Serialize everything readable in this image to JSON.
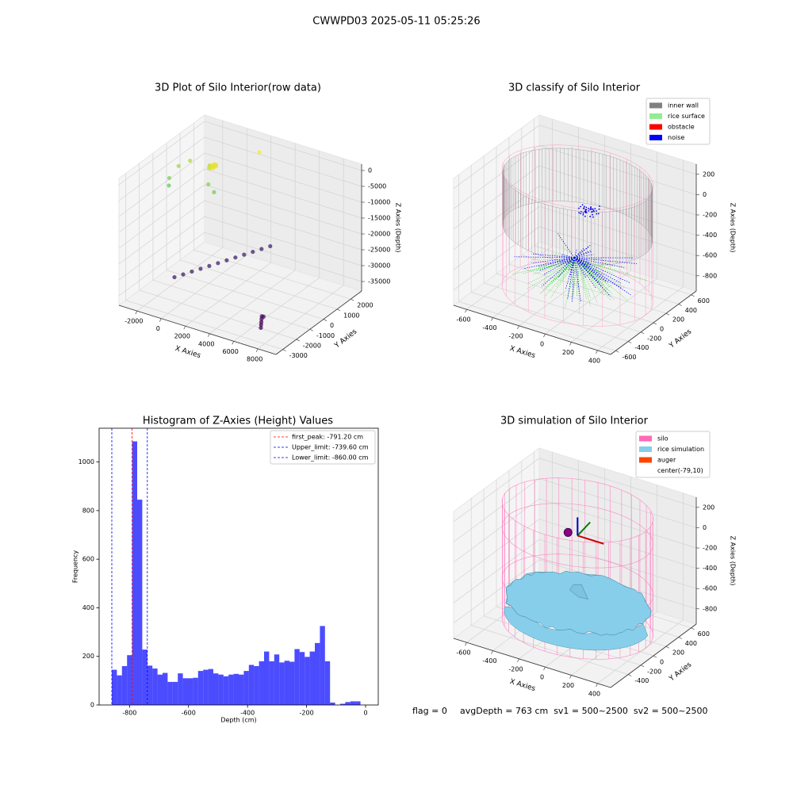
{
  "title": "CWWPD03 2025-05-11 05:25:26",
  "footer": [
    "flag = 0",
    "avgDepth = 763 cm  sv1 = 500~2500  sv2 = 500~2500"
  ],
  "chart_data": [
    {
      "type": "scatter3d",
      "title": "3D Plot of Silo Interior(row data)",
      "xlabel": "X Axies",
      "ylabel": "Y Axies",
      "zlabel": "Z Axies (Depth)",
      "xlim": [
        -3500,
        9500
      ],
      "ylim": [
        -3500,
        2800
      ],
      "zlim": [
        -38000,
        2000
      ],
      "xticks": [
        -2000,
        0,
        2000,
        4000,
        6000,
        8000
      ],
      "yticks": [
        -3000,
        -2000,
        -1000,
        0,
        1000,
        2000
      ],
      "zticks": [
        -35000,
        -30000,
        -25000,
        -20000,
        -15000,
        -10000,
        -5000,
        0
      ],
      "colormap": "viridis",
      "x": [
        6300,
        6450,
        6600,
        6750,
        6900,
        6500,
        -1330,
        -1020,
        -710,
        -400,
        -90,
        220,
        530,
        840,
        1150,
        1460,
        1770,
        2080,
        -2500,
        -2000,
        -2600,
        -2400,
        -600,
        300,
        2500,
        1000,
        -200,
        400,
        550,
        650,
        500,
        450,
        600,
        700,
        350
      ],
      "y": [
        -1700,
        -1850,
        -2000,
        -2150,
        -2300,
        -1750,
        -1345,
        -980,
        -615,
        -250,
        115,
        480,
        845,
        1210,
        1575,
        1940,
        2305,
        2670,
        0,
        400,
        -600,
        -800,
        600,
        -300,
        1500,
        -500,
        200,
        -200,
        -150,
        -250,
        -50,
        -300,
        0,
        -100,
        -100
      ],
      "z": [
        -35500,
        -35700,
        -36000,
        -36200,
        -36500,
        -35200,
        -33400,
        -33300,
        -33200,
        -33100,
        -33000,
        -32900,
        -32800,
        -32700,
        -32600,
        -32500,
        -32400,
        -32300,
        -4000,
        -3000,
        -6000,
        -7500,
        -3500,
        -5500,
        1500,
        -6500,
        -2500,
        0,
        200,
        -100,
        300,
        -300,
        100,
        0,
        -200
      ]
    },
    {
      "type": "scene3d",
      "title": "3D classify of Silo Interior",
      "xlabel": "X Axies",
      "ylabel": "Y Axies",
      "zlabel": "Z Axies (Depth)",
      "xlim": [
        -700,
        500
      ],
      "ylim": [
        -680,
        680
      ],
      "zlim": [
        -950,
        300
      ],
      "xticks": [
        -600,
        -400,
        -200,
        0,
        200,
        400
      ],
      "yticks": [
        -600,
        -400,
        -200,
        0,
        200,
        400,
        600
      ],
      "zticks": [
        -800,
        -600,
        -400,
        -200,
        0,
        200
      ],
      "legend": "upper right",
      "series": [
        {
          "name": "inner wall",
          "color": "#808080"
        },
        {
          "name": "rice surface",
          "color": "#90ee90"
        },
        {
          "name": "obstacle",
          "color": "#ff0000"
        },
        {
          "name": "noise",
          "color": "#0000ff"
        }
      ]
    },
    {
      "type": "histogram",
      "title": "Histogram of Z-Axies (Height) Values",
      "xlabel": "Depth (cm)",
      "ylabel": "Frequency",
      "color": "#0000ff",
      "bins": [
        -860,
        -842.8,
        -825.6,
        -808.4,
        -791.2,
        -774,
        -756.8,
        -739.6,
        -722.4,
        -705.2,
        -688,
        -670.8,
        -653.6,
        -636.4,
        -619.2,
        -602,
        -584.8,
        -567.6,
        -550.4,
        -533.2,
        -516,
        -498.8,
        -481.6,
        -464.4,
        -447.2,
        -430,
        -412.8,
        -395.6,
        -378.4,
        -361.2,
        -344,
        -326.8,
        -309.6,
        -292.4,
        -275.2,
        -258,
        -240.8,
        -223.6,
        -206.4,
        -189.2,
        -172,
        -154.8,
        -137.6,
        -120.4,
        -103.2,
        -86,
        -68.8,
        -51.6,
        -34.4,
        -17.2,
        0
      ],
      "counts": [
        145,
        122,
        160,
        205,
        1085,
        845,
        228,
        162,
        150,
        125,
        132,
        95,
        95,
        130,
        110,
        110,
        112,
        140,
        145,
        148,
        130,
        125,
        118,
        125,
        128,
        125,
        140,
        165,
        160,
        180,
        220,
        180,
        208,
        175,
        182,
        178,
        230,
        218,
        198,
        220,
        255,
        325,
        180,
        10,
        0,
        5,
        12,
        15,
        15,
        0
      ],
      "xlim": [
        -903,
        43
      ],
      "ylim": [
        0,
        1139
      ],
      "xticks": [
        -800,
        -600,
        -400,
        -200,
        0
      ],
      "yticks": [
        0,
        200,
        400,
        600,
        800,
        1000
      ],
      "legend": "upper right",
      "vlines": [
        {
          "value": -791.2,
          "label": "first_peak: -791.20 cm",
          "color": "#ff0000"
        },
        {
          "value": -739.6,
          "label": "Upper_limit: -739.60 cm",
          "color": "#0000ff"
        },
        {
          "value": -860,
          "label": "Lower_limit: -860.00 cm",
          "color": "#0000ff"
        }
      ]
    },
    {
      "type": "scene3d",
      "title": "3D simulation of Silo Interior",
      "xlabel": "X Axies",
      "ylabel": "Y Axies",
      "zlabel": "Z Axies (Depth)",
      "xlim": [
        -700,
        500
      ],
      "ylim": [
        -680,
        680
      ],
      "zlim": [
        -950,
        300
      ],
      "xticks": [
        -600,
        -400,
        -200,
        0,
        200,
        400
      ],
      "yticks": [
        -400,
        -200,
        0,
        200,
        400,
        600
      ],
      "zticks": [
        -800,
        -600,
        -400,
        -200,
        0,
        200
      ],
      "legend": "upper right",
      "series": [
        {
          "name": "silo",
          "color": "#ff69b4"
        },
        {
          "name": "rice simulation",
          "color": "#87ceeb"
        },
        {
          "name": "auger",
          "color": "#ff4500"
        },
        {
          "name": "center(-79,10)",
          "color": "#ffffff"
        }
      ]
    }
  ]
}
